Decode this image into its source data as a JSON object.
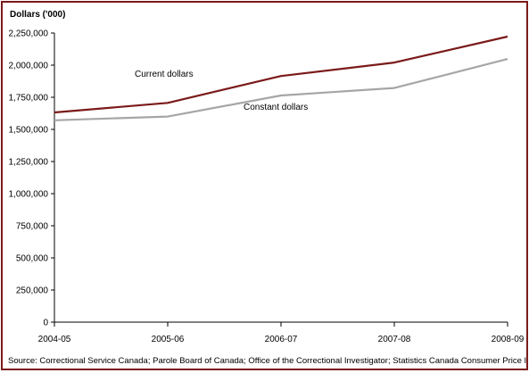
{
  "chart_data": {
    "type": "line",
    "ylabel": "Dollars ('000)",
    "categories": [
      "2004-05",
      "2005-06",
      "2006-07",
      "2007-08",
      "2008-09"
    ],
    "ylim": [
      0,
      2250000
    ],
    "yticks": [
      "0",
      "250,000",
      "500,000",
      "750,000",
      "1,000,000",
      "1,250,000",
      "1,500,000",
      "1,750,000",
      "2,000,000",
      "2,250,000"
    ],
    "grid": false,
    "series": [
      {
        "name": "Current dollars",
        "color": "#7b1a1a",
        "values": [
          1632000,
          1706000,
          1915000,
          2020000,
          2222000
        ]
      },
      {
        "name": "Constant dollars",
        "color": "#a6a6a6",
        "values": [
          1571000,
          1600000,
          1764000,
          1822000,
          2048000
        ]
      }
    ],
    "source": "Source: Correctional Service Canada; Parole Board of Canada; Office of the Correctional Investigator; Statistics Canada Consumer Price Index."
  }
}
